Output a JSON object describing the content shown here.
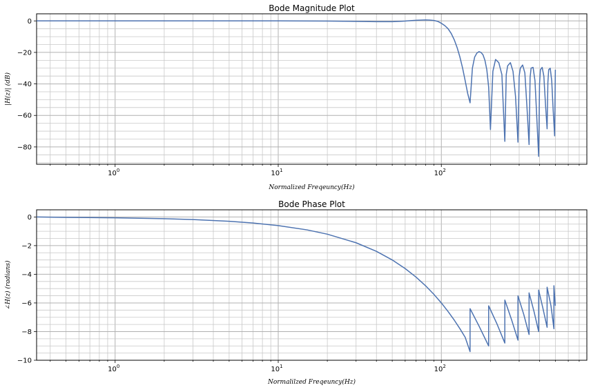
{
  "chart_data": [
    {
      "type": "line",
      "title": "Bode Magnitude Plot",
      "xlabel": "Normalized Freqeuncy(Hz)",
      "ylabel": "|H(z)| (dB)",
      "xscale": "log",
      "xlim": [
        0.33,
        780
      ],
      "ylim": [
        -91,
        4.5
      ],
      "xticks": [
        {
          "v": 1,
          "base": "10",
          "exp": "0"
        },
        {
          "v": 10,
          "base": "10",
          "exp": "1"
        },
        {
          "v": 100,
          "base": "10",
          "exp": "2"
        }
      ],
      "yticks": [
        0,
        -20,
        -40,
        -60,
        -80
      ],
      "grid": true,
      "line_color": "#4c72b0",
      "series": [
        {
          "x": [
            0.33,
            1,
            3,
            10,
            20,
            30,
            40,
            50,
            55,
            60,
            65,
            70,
            75,
            80,
            85,
            90,
            95,
            100,
            105,
            110,
            115,
            120,
            125,
            130,
            135,
            140,
            145,
            150,
            155,
            160,
            165,
            170,
            175,
            180,
            185,
            190,
            195,
            200,
            207,
            215,
            225,
            235,
            245,
            250,
            255,
            265,
            275,
            285,
            295,
            300,
            305,
            315,
            325,
            335,
            345,
            350,
            355,
            365,
            375,
            385,
            395,
            400,
            405,
            415,
            425,
            435,
            445,
            450,
            455,
            465,
            475,
            485,
            495,
            500
          ],
          "y": [
            0,
            0,
            0,
            0,
            -0.1,
            -0.3,
            -0.5,
            -0.5,
            -0.3,
            -0.1,
            0.2,
            0.4,
            0.5,
            0.6,
            0.5,
            0.3,
            -0.3,
            -1.5,
            -3,
            -5,
            -8,
            -12,
            -17,
            -23,
            -30,
            -38,
            -46,
            -52,
            -30,
            -23,
            -20.5,
            -19.5,
            -20,
            -21.5,
            -25,
            -31,
            -42,
            -69,
            -32,
            -24.5,
            -26.5,
            -34,
            -76.5,
            -34,
            -28.5,
            -26.5,
            -32,
            -48,
            -77,
            -35,
            -30,
            -28,
            -33,
            -55,
            -78.5,
            -36,
            -30,
            -29.5,
            -38,
            -62,
            -86,
            -40,
            -31,
            -29.5,
            -35,
            -53,
            -68.5,
            -39,
            -31,
            -30,
            -38,
            -57,
            -73,
            -31
          ]
        }
      ]
    },
    {
      "type": "line",
      "title": "Bode Phase Plot",
      "xlabel": "Normalilzed Freqeuncy(Hz)",
      "ylabel": "∠H(z) (radians)",
      "xscale": "log",
      "xlim": [
        0.33,
        780
      ],
      "ylim": [
        -10,
        0.5
      ],
      "xticks": [
        {
          "v": 1,
          "base": "10",
          "exp": "0"
        },
        {
          "v": 10,
          "base": "10",
          "exp": "1"
        },
        {
          "v": 100,
          "base": "10",
          "exp": "2"
        }
      ],
      "yticks": [
        0,
        -2,
        -4,
        -6,
        -8,
        -10
      ],
      "grid": true,
      "line_color": "#4c72b0",
      "series": [
        {
          "x": [
            0.33,
            0.5,
            1,
            2,
            3,
            5,
            7,
            10,
            15,
            20,
            30,
            40,
            50,
            60,
            70,
            80,
            90,
            100,
            110,
            120,
            130,
            140,
            150,
            150.01,
            170,
            195,
            195.01,
            220,
            245,
            245.01,
            270,
            295,
            295.01,
            320,
            345,
            345.01,
            370,
            395,
            395.01,
            420,
            445,
            445.01,
            470,
            490,
            490.01,
            500
          ],
          "y": [
            0,
            -0.03,
            -0.06,
            -0.12,
            -0.18,
            -0.3,
            -0.42,
            -0.6,
            -0.9,
            -1.2,
            -1.8,
            -2.4,
            -3.0,
            -3.6,
            -4.2,
            -4.8,
            -5.4,
            -6.0,
            -6.6,
            -7.2,
            -7.8,
            -8.4,
            -9.4,
            -6.4,
            -7.6,
            -9.0,
            -6.2,
            -7.5,
            -8.8,
            -5.8,
            -7.2,
            -8.6,
            -5.5,
            -6.8,
            -8.2,
            -5.3,
            -6.6,
            -8.0,
            -5.1,
            -6.4,
            -7.7,
            -4.9,
            -6.2,
            -7.8,
            -4.8,
            -6.2
          ]
        }
      ]
    }
  ]
}
